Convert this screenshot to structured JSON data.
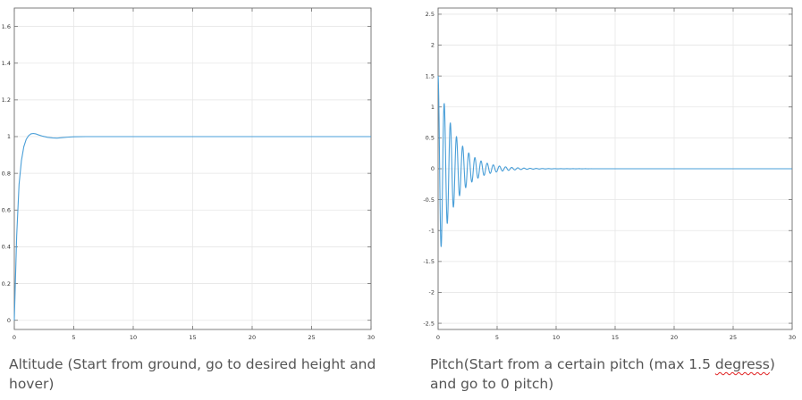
{
  "chart_data": [
    {
      "type": "line",
      "title": "",
      "xlabel": "",
      "ylabel": "",
      "xlim": [
        0,
        30
      ],
      "ylim": [
        -0.05,
        1.7
      ],
      "xticks": [
        "0",
        "5",
        "10",
        "15",
        "20",
        "25",
        "30"
      ],
      "yticks": [
        "0",
        "0.2",
        "0.4",
        "0.6",
        "0.8",
        "1",
        "1.2",
        "1.4",
        "1.6"
      ],
      "grid": true,
      "color": "#4a9fd8",
      "x": [
        0,
        0.2,
        0.4,
        0.6,
        0.8,
        1.0,
        1.2,
        1.4,
        1.6,
        1.8,
        2.0,
        2.4,
        2.8,
        3.2,
        3.6,
        4.0,
        4.5,
        5.0,
        6,
        8,
        10,
        15,
        20,
        25,
        30
      ],
      "y": [
        0,
        0.46,
        0.74,
        0.87,
        0.945,
        0.985,
        1.005,
        1.015,
        1.017,
        1.015,
        1.01,
        1.002,
        0.996,
        0.993,
        0.992,
        0.994,
        0.997,
        0.999,
        1,
        1,
        1,
        1,
        1,
        1,
        1
      ]
    },
    {
      "type": "line",
      "title": "",
      "xlabel": "",
      "ylabel": "",
      "xlim": [
        0,
        30
      ],
      "ylim": [
        -2.6,
        2.6
      ],
      "xticks": [
        "0",
        "5",
        "10",
        "15",
        "20",
        "25",
        "30"
      ],
      "yticks": [
        "-2.5",
        "-2",
        "-1.5",
        "-1",
        "-0.5",
        "0",
        "0.5",
        "1",
        "1.5",
        "2",
        "2.5"
      ],
      "grid": true,
      "color": "#4a9fd8",
      "signal": {
        "initial_amplitude": 1.5,
        "period": 0.52,
        "decay_rate": 0.68,
        "settle_value": 0
      }
    }
  ],
  "captions": {
    "left": "Altitude (Start from ground, go to desired height and hover)",
    "right_before": "Pitch(Start from a certain pitch (max 1.5 ",
    "right_misspelled": "degress",
    "right_after": ") and go to 0 pitch)"
  }
}
